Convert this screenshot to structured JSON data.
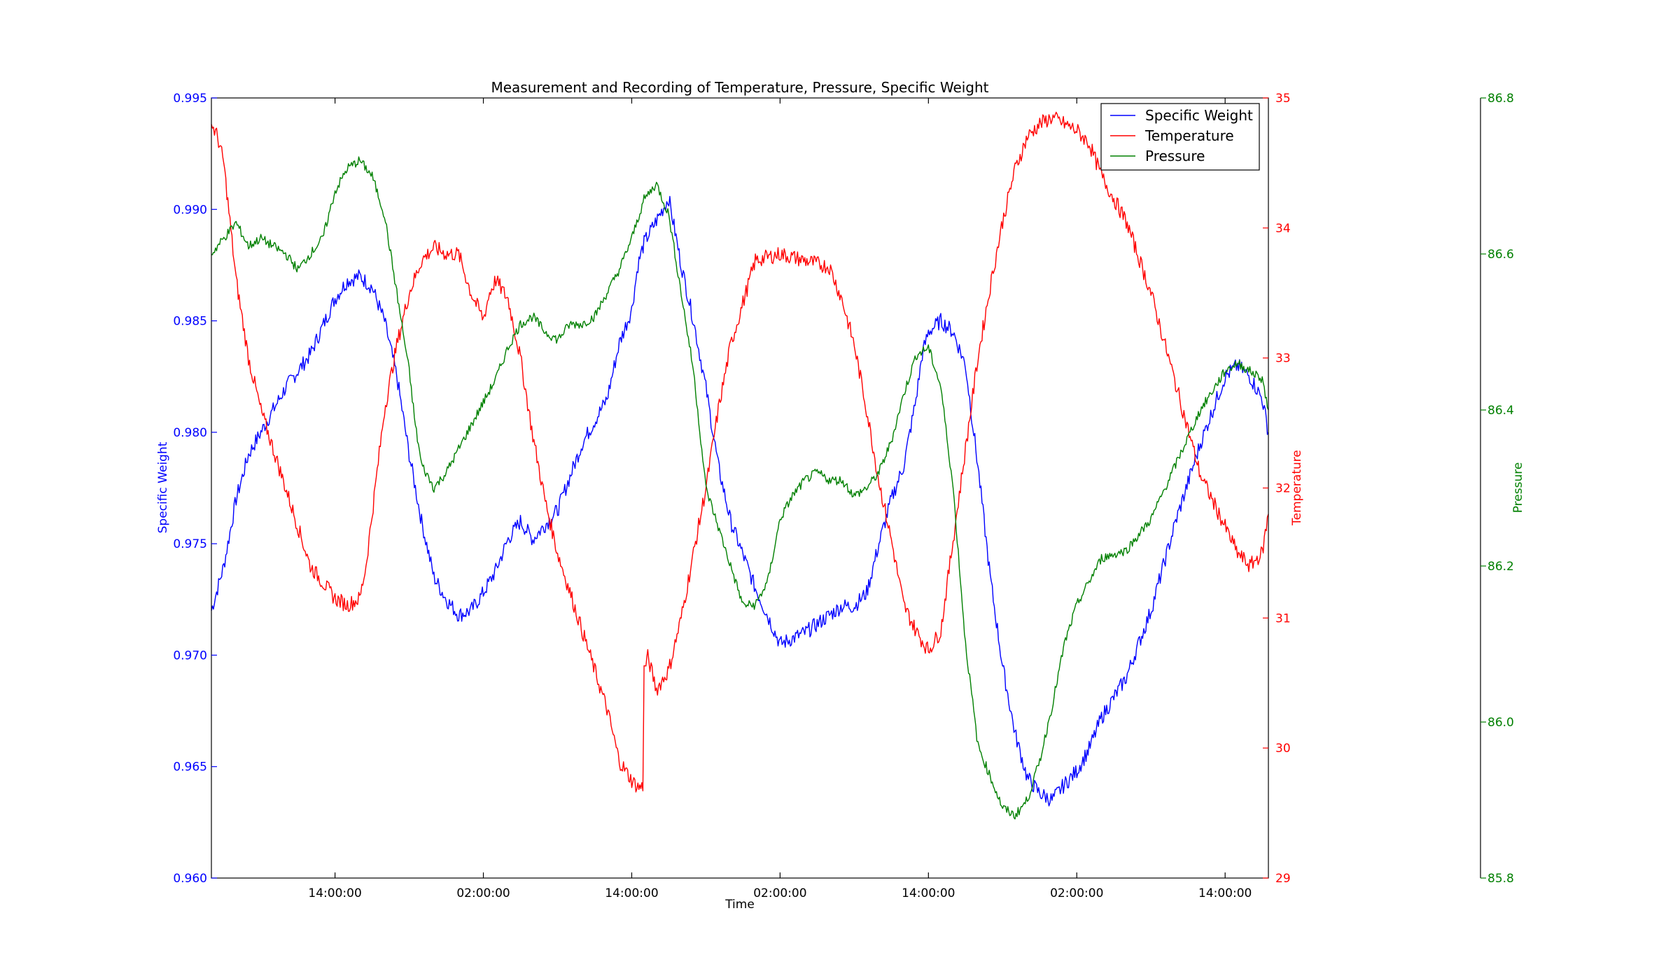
{
  "chart_data": {
    "type": "line",
    "title": "Measurement and Recording of Temperature, Pressure, Specific Weight",
    "xlabel": "Time",
    "x_ticks": [
      "14:00:00",
      "02:00:00",
      "14:00:00",
      "02:00:00",
      "14:00:00",
      "02:00:00",
      "14:00:00"
    ],
    "x_tick_hours": [
      14,
      26,
      38,
      50,
      62,
      74,
      86
    ],
    "xlim": [
      4,
      89.5
    ],
    "grid": false,
    "legend_position": "top-right",
    "axes": [
      {
        "id": "sw",
        "label": "Specific Weight",
        "color": "#0000ff",
        "side": "left",
        "ylim": [
          0.96,
          0.995
        ],
        "ticks": [
          "0.960",
          "0.965",
          "0.970",
          "0.975",
          "0.980",
          "0.985",
          "0.990",
          "0.995"
        ]
      },
      {
        "id": "temp",
        "label": "Temperature",
        "color": "#ff0000",
        "side": "right",
        "ylim": [
          29,
          35
        ],
        "ticks": [
          "29",
          "30",
          "31",
          "32",
          "33",
          "34",
          "35"
        ]
      },
      {
        "id": "press",
        "label": "Pressure",
        "color": "#008000",
        "side": "right-offset",
        "ylim": [
          85.8,
          86.8
        ],
        "ticks": [
          "85.8",
          "86.0",
          "86.2",
          "86.4",
          "86.6",
          "86.8"
        ]
      }
    ],
    "series": [
      {
        "name": "Specific Weight",
        "axis": "sw",
        "color": "#0000ff",
        "x": [
          4,
          5,
          6,
          7,
          8,
          10,
          12,
          14,
          15,
          16,
          17,
          18,
          19,
          20,
          21,
          22,
          23,
          24,
          25,
          26,
          27,
          28,
          29,
          30,
          32,
          34,
          36,
          37,
          38,
          38.5,
          39,
          40,
          41,
          42,
          43,
          44,
          45,
          46,
          48,
          50,
          52,
          54,
          55,
          56,
          57,
          58,
          59,
          60,
          61,
          61.5,
          62,
          63,
          64,
          65,
          66,
          67,
          68,
          69,
          70,
          71,
          72,
          73,
          74,
          75,
          76,
          78,
          80,
          82,
          84,
          86,
          87,
          88,
          89,
          89.5
        ],
        "y": [
          0.972,
          0.974,
          0.977,
          0.979,
          0.98,
          0.982,
          0.9835,
          0.986,
          0.9868,
          0.987,
          0.9865,
          0.985,
          0.9825,
          0.979,
          0.976,
          0.9735,
          0.9725,
          0.9718,
          0.972,
          0.9728,
          0.9738,
          0.9752,
          0.976,
          0.9752,
          0.9765,
          0.9795,
          0.9815,
          0.984,
          0.9855,
          0.9875,
          0.9885,
          0.9895,
          0.9905,
          0.9875,
          0.985,
          0.982,
          0.9785,
          0.976,
          0.973,
          0.9705,
          0.971,
          0.9718,
          0.9722,
          0.9722,
          0.9728,
          0.975,
          0.977,
          0.9785,
          0.9815,
          0.9835,
          0.9845,
          0.985,
          0.9845,
          0.983,
          0.9785,
          0.9735,
          0.9695,
          0.9665,
          0.9645,
          0.9638,
          0.9635,
          0.9642,
          0.9648,
          0.9658,
          0.9672,
          0.969,
          0.972,
          0.976,
          0.9795,
          0.9825,
          0.983,
          0.9825,
          0.9815,
          0.98
        ]
      },
      {
        "name": "Temperature",
        "axis": "temp",
        "color": "#ff0000",
        "x": [
          4,
          4.5,
          5,
          6,
          7,
          8,
          10,
          12,
          14,
          15,
          16,
          16.5,
          17,
          18,
          19,
          20,
          21,
          22,
          23,
          24,
          25,
          26,
          26.5,
          27,
          28,
          29,
          30,
          31,
          32,
          34,
          36,
          37,
          38,
          38.5,
          38.9,
          39,
          39.3,
          40,
          41,
          42,
          43,
          44,
          45,
          46,
          48,
          50,
          52,
          54,
          55,
          56,
          57,
          58,
          59,
          60,
          61,
          62,
          63,
          64,
          65,
          66,
          67,
          68,
          69,
          70,
          71,
          72,
          73,
          74,
          75,
          76,
          78,
          80,
          82,
          84,
          86,
          87,
          88,
          89,
          89.5
        ],
        "y": [
          34.8,
          34.7,
          34.5,
          33.6,
          33.0,
          32.6,
          32.0,
          31.4,
          31.15,
          31.1,
          31.15,
          31.4,
          31.8,
          32.6,
          33.1,
          33.5,
          33.75,
          33.85,
          33.8,
          33.8,
          33.5,
          33.3,
          33.5,
          33.6,
          33.45,
          33.0,
          32.4,
          31.9,
          31.5,
          30.9,
          30.3,
          29.9,
          29.75,
          29.7,
          29.7,
          30.6,
          30.7,
          30.45,
          30.6,
          31.0,
          31.5,
          32.0,
          32.6,
          33.1,
          33.75,
          33.8,
          33.75,
          33.7,
          33.45,
          33.1,
          32.6,
          32.05,
          31.6,
          31.1,
          30.9,
          30.75,
          30.9,
          31.6,
          32.3,
          33.0,
          33.55,
          34.05,
          34.45,
          34.7,
          34.8,
          34.85,
          34.8,
          34.75,
          34.65,
          34.4,
          34.05,
          33.5,
          32.8,
          32.1,
          31.7,
          31.5,
          31.4,
          31.5,
          31.8
        ]
      },
      {
        "name": "Pressure",
        "axis": "press",
        "color": "#008000",
        "x": [
          4,
          5,
          6,
          7,
          8,
          9,
          10,
          11,
          12,
          13,
          14,
          15,
          16,
          17,
          18,
          19,
          20,
          20.5,
          21,
          22,
          23,
          24,
          25,
          26,
          27,
          28,
          29,
          30,
          31,
          32,
          33,
          34,
          35,
          36,
          37,
          38,
          39,
          40,
          41,
          42,
          43,
          44,
          45,
          46,
          47,
          48,
          49,
          50,
          51,
          52,
          53,
          54,
          55,
          56,
          57,
          58,
          59,
          60,
          61,
          62,
          63,
          64,
          65,
          66,
          67,
          68,
          69,
          70,
          71,
          72,
          73,
          74,
          75,
          76,
          78,
          80,
          82,
          84,
          86,
          87,
          88,
          89,
          89.5
        ],
        "y": [
          86.6,
          86.62,
          86.64,
          86.61,
          86.62,
          86.61,
          86.6,
          86.58,
          86.6,
          86.62,
          86.68,
          86.71,
          86.72,
          86.7,
          86.65,
          86.55,
          86.45,
          86.38,
          86.33,
          86.3,
          86.32,
          86.35,
          86.38,
          86.41,
          86.44,
          86.48,
          86.51,
          86.52,
          86.5,
          86.49,
          86.51,
          86.51,
          86.52,
          86.55,
          86.58,
          86.62,
          86.67,
          86.69,
          86.65,
          86.55,
          86.45,
          86.3,
          86.25,
          86.2,
          86.15,
          86.15,
          86.18,
          86.26,
          86.29,
          86.31,
          86.32,
          86.31,
          86.31,
          86.29,
          86.3,
          86.32,
          86.36,
          86.42,
          86.47,
          86.48,
          86.43,
          86.3,
          86.1,
          85.97,
          85.93,
          85.89,
          85.88,
          85.9,
          85.95,
          86.02,
          86.1,
          86.15,
          86.18,
          86.21,
          86.22,
          86.26,
          86.33,
          86.4,
          86.45,
          86.46,
          86.45,
          86.44,
          86.4
        ]
      }
    ]
  }
}
